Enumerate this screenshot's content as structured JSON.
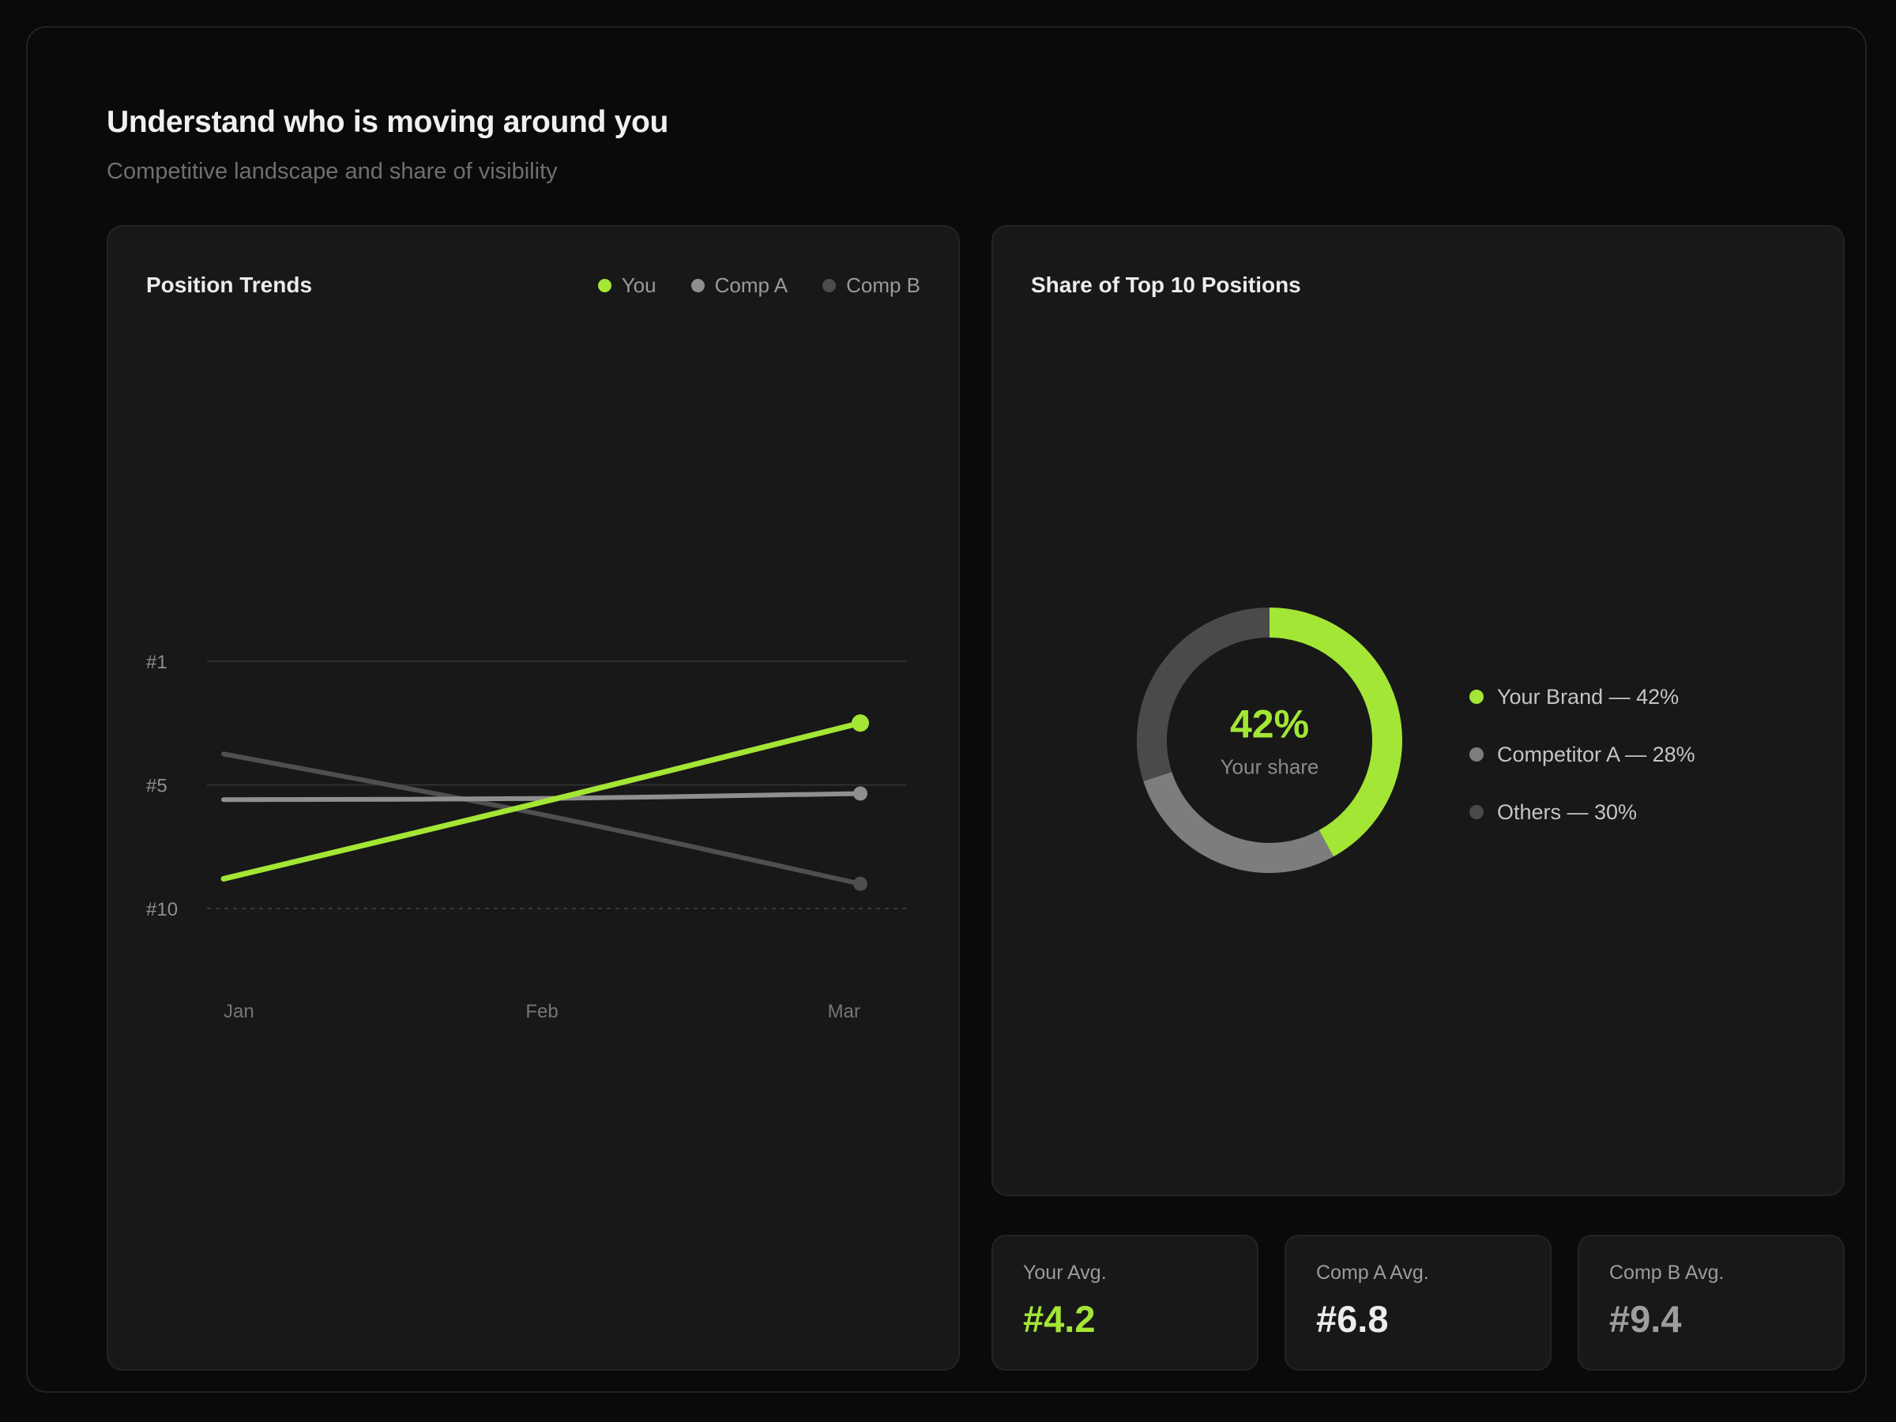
{
  "header": {
    "title": "Understand who is moving around you",
    "subtitle": "Competitive landscape and share of visibility"
  },
  "colors": {
    "accent_green": "#a3e635",
    "comp_a_gray": "#8f8f8f",
    "comp_b_gray": "#4c4c4c",
    "white_value": "#ececec",
    "gray_value": "#9e9e9e"
  },
  "position_trends_card": {
    "title": "Position Trends",
    "legend": [
      {
        "label": "You",
        "color": "#a3e635"
      },
      {
        "label": "Comp A",
        "color": "#8f8f8f"
      },
      {
        "label": "Comp B",
        "color": "#4c4c4c"
      }
    ]
  },
  "share_card": {
    "title": "Share of Top 10 Positions",
    "center_value": "42%",
    "center_label": "Your share",
    "legend": [
      {
        "label": "Your Brand — 42%",
        "color": "#a3e635"
      },
      {
        "label": "Competitor A — 28%",
        "color": "#7d7d7d"
      },
      {
        "label": "Others — 30%",
        "color": "#4a4a4a"
      }
    ]
  },
  "stat_cards": [
    {
      "label": "Your Avg.",
      "value": "#4.2",
      "value_color": "#a3e635"
    },
    {
      "label": "Comp A Avg.",
      "value": "#6.8",
      "value_color": "#ececec"
    },
    {
      "label": "Comp B Avg.",
      "value": "#9.4",
      "value_color": "#9e9e9e"
    }
  ],
  "chart_data": [
    {
      "type": "line",
      "title": "Position Trends",
      "categories": [
        "Jan",
        "Feb",
        "Mar"
      ],
      "series": [
        {
          "name": "You",
          "color": "#a3e635",
          "values": [
            8.8,
            5.7,
            3.0
          ]
        },
        {
          "name": "Comp A",
          "color": "#8f8f8f",
          "values": [
            5.6,
            5.55,
            5.35
          ]
        },
        {
          "name": "Comp B",
          "color": "#4f4f4f",
          "values": [
            4.0,
            6.2,
            9.0
          ]
        }
      ],
      "y_axis": {
        "tick_labels": [
          "#1",
          "#5",
          "#10"
        ],
        "tick_values": [
          1,
          5,
          10
        ],
        "inverted": true,
        "note": "rank scale, #1 best at top"
      },
      "x_axis": {
        "labels": [
          "Jan",
          "Feb",
          "Mar"
        ]
      },
      "grid": {
        "horizontal_lines": 3,
        "last_line_dashed": true
      },
      "legend_position": "top-right",
      "end_point_dots": true
    },
    {
      "type": "donut",
      "title": "Share of Top 10 Positions",
      "slices": [
        {
          "label": "Your Brand",
          "value": 42,
          "color": "#a3e635"
        },
        {
          "label": "Competitor A",
          "value": 28,
          "color": "#7d7d7d"
        },
        {
          "label": "Others",
          "value": 30,
          "color": "#4a4a4a"
        }
      ],
      "start_angle_deg": 0,
      "direction": "clockwise",
      "center_value": "42%",
      "center_label": "Your share"
    }
  ]
}
